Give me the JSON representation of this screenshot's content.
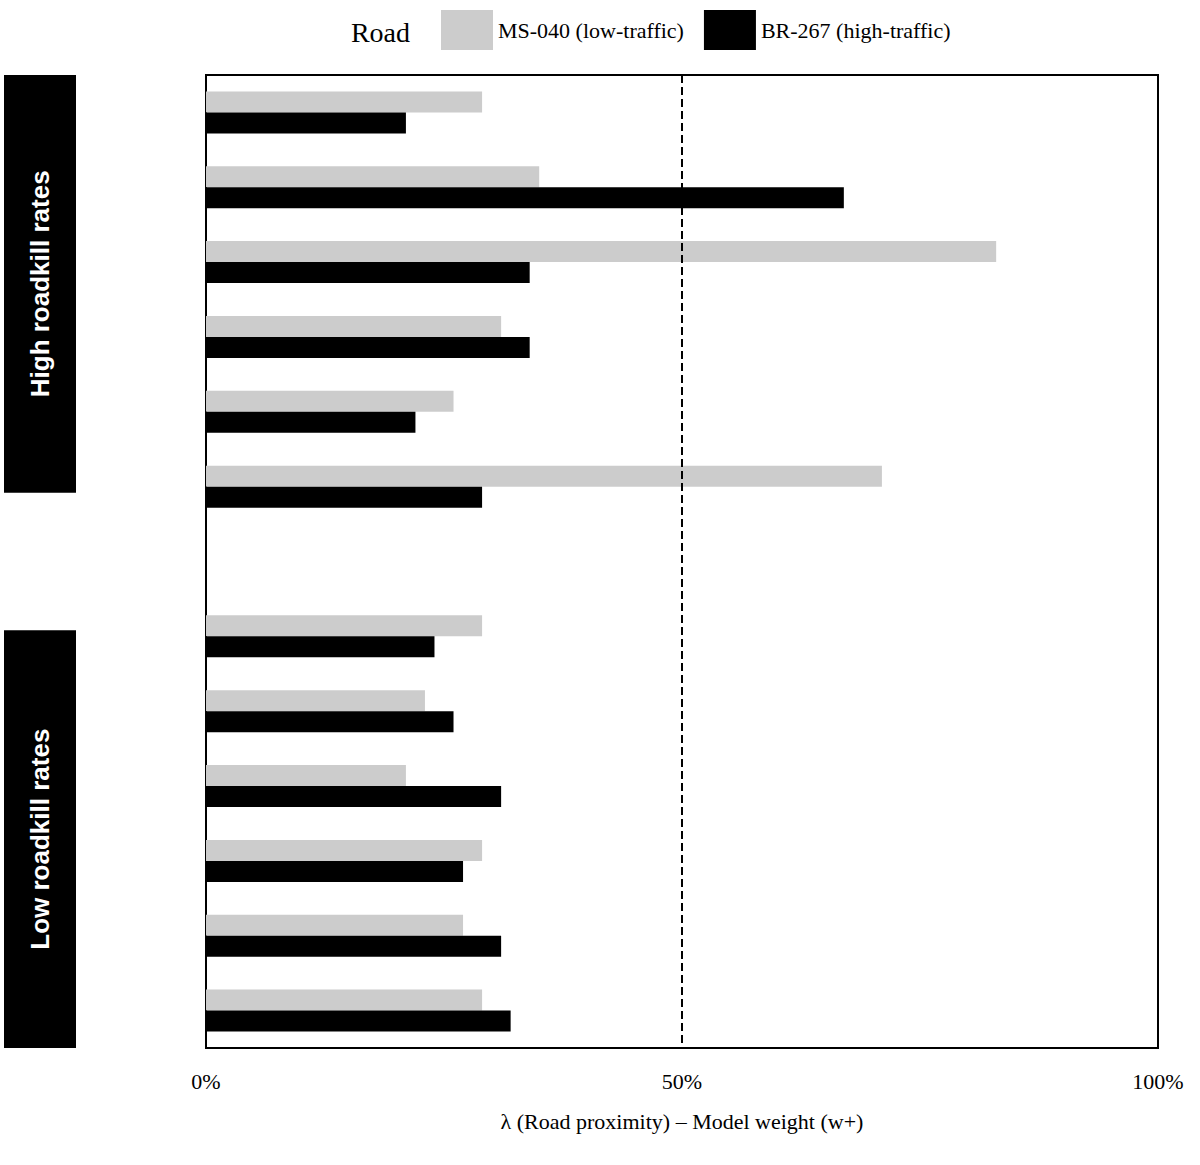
{
  "chart_data": {
    "type": "bar",
    "orientation": "horizontal",
    "legend_title": "Road",
    "legend": "top",
    "xlabel": "λ (Road proximity) – Model weight (w+)",
    "annotations": [
      "High roadkill rates",
      "Low roadkill rates"
    ],
    "categories": [
      null,
      null,
      null,
      null,
      null,
      null,
      null,
      null,
      null,
      null,
      null,
      null,
      null
    ],
    "series": [
      {
        "name": "MS-040 (low-traffic)",
        "color": "#cccccc",
        "values": [
          29,
          35,
          83,
          31,
          26,
          71,
          null,
          29,
          23,
          21,
          29,
          27,
          29
        ]
      },
      {
        "name": "BR-267 (high-traffic)",
        "color": "#000000",
        "values": [
          21,
          67,
          34,
          34,
          22,
          29,
          null,
          24,
          26,
          31,
          27,
          31,
          32
        ]
      }
    ],
    "reference_line": 50,
    "xlim": [
      0,
      100
    ],
    "xticks": [
      {
        "value": 0,
        "label": "0%"
      },
      {
        "value": 50,
        "label": "50%"
      },
      {
        "value": 100,
        "label": "100%"
      }
    ],
    "grid": false,
    "tick_labels": "x"
  }
}
